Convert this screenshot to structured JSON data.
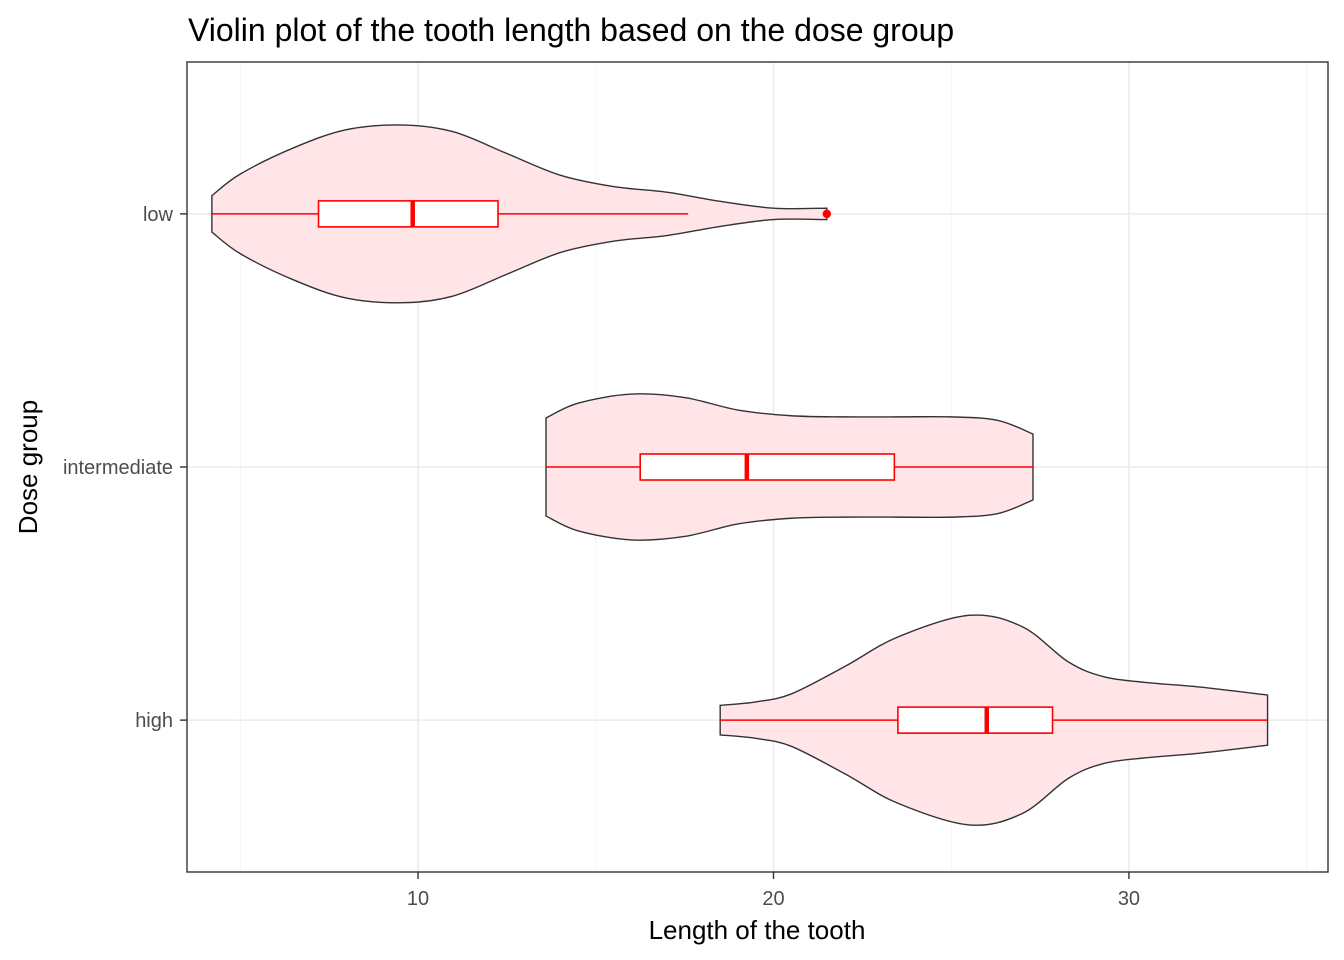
{
  "chart_data": {
    "type": "violin",
    "orientation": "horizontal",
    "title": "Violin plot of the tooth length based on the dose group",
    "xlabel": "Length of the tooth",
    "ylabel": "Dose group",
    "xlim": [
      3.5,
      35.6
    ],
    "x_ticks": [
      10,
      20,
      30
    ],
    "x_tick_labels": [
      "10",
      "20",
      "30"
    ],
    "categories": [
      "low",
      "intermediate",
      "high"
    ],
    "grid": true,
    "colors": {
      "violin_fill": "#ffe4e8",
      "violin_outline": "#333333",
      "boxplot": "#ff0000",
      "box_fill": "#ffffff"
    },
    "groups": [
      {
        "name": "low",
        "min": 4.2,
        "max": 21.5,
        "boxplot": {
          "q1": 7.2,
          "median": 9.85,
          "q3": 12.25,
          "whisker_low": 4.2,
          "whisker_high": 17.6,
          "outliers": [
            21.5
          ]
        },
        "density": [
          [
            4.2,
            0.16
          ],
          [
            5.0,
            0.35
          ],
          [
            6.5,
            0.58
          ],
          [
            8.0,
            0.74
          ],
          [
            9.6,
            0.78
          ],
          [
            11.0,
            0.72
          ],
          [
            12.5,
            0.53
          ],
          [
            14.0,
            0.34
          ],
          [
            15.5,
            0.24
          ],
          [
            17.0,
            0.19
          ],
          [
            18.5,
            0.11
          ],
          [
            20.0,
            0.05
          ],
          [
            21.5,
            0.05
          ]
        ]
      },
      {
        "name": "intermediate",
        "min": 13.6,
        "max": 27.3,
        "boxplot": {
          "q1": 16.25,
          "median": 19.25,
          "q3": 23.4,
          "whisker_low": 13.6,
          "whisker_high": 27.3,
          "outliers": []
        },
        "density": [
          [
            13.6,
            0.43
          ],
          [
            14.5,
            0.56
          ],
          [
            16.0,
            0.64
          ],
          [
            17.5,
            0.61
          ],
          [
            19.0,
            0.5
          ],
          [
            20.5,
            0.45
          ],
          [
            22.0,
            0.44
          ],
          [
            23.5,
            0.44
          ],
          [
            25.0,
            0.44
          ],
          [
            26.3,
            0.41
          ],
          [
            27.3,
            0.29
          ]
        ]
      },
      {
        "name": "high",
        "min": 18.5,
        "max": 33.9,
        "boxplot": {
          "q1": 23.5,
          "median": 26.0,
          "q3": 27.85,
          "whisker_low": 18.5,
          "whisker_high": 33.9,
          "outliers": []
        },
        "density": [
          [
            18.5,
            0.13
          ],
          [
            19.5,
            0.16
          ],
          [
            20.5,
            0.23
          ],
          [
            22.0,
            0.47
          ],
          [
            23.5,
            0.73
          ],
          [
            25.5,
            0.92
          ],
          [
            27.0,
            0.82
          ],
          [
            28.3,
            0.51
          ],
          [
            29.3,
            0.38
          ],
          [
            30.5,
            0.33
          ],
          [
            32.0,
            0.29
          ],
          [
            33.9,
            0.22
          ]
        ]
      }
    ]
  }
}
